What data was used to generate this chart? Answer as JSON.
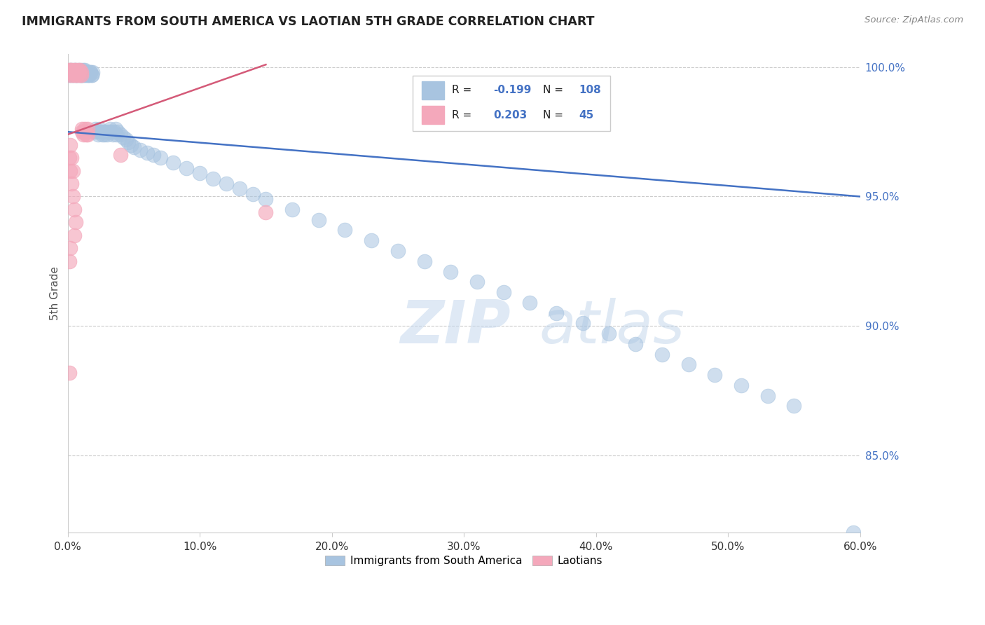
{
  "title": "IMMIGRANTS FROM SOUTH AMERICA VS LAOTIAN 5TH GRADE CORRELATION CHART",
  "source": "Source: ZipAtlas.com",
  "ylabel": "5th Grade",
  "blue_R": "-0.199",
  "blue_N": "108",
  "pink_R": "0.203",
  "pink_N": "45",
  "legend_label_blue": "Immigrants from South America",
  "legend_label_pink": "Laotians",
  "blue_color": "#a8c4e0",
  "pink_color": "#f4a8bb",
  "blue_line_color": "#4472c4",
  "pink_line_color": "#d45a78",
  "watermark_zip": "ZIP",
  "watermark_atlas": "atlas",
  "xmin": 0.0,
  "xmax": 0.6,
  "ymin": 0.82,
  "ymax": 1.005,
  "ytick_vals": [
    0.85,
    0.9,
    0.95,
    1.0
  ],
  "ytick_labels": [
    "85.0%",
    "90.0%",
    "95.0%",
    "100.0%"
  ],
  "xtick_vals": [
    0.0,
    0.1,
    0.2,
    0.3,
    0.4,
    0.5,
    0.6
  ],
  "xtick_labels": [
    "0.0%",
    "10.0%",
    "20.0%",
    "30.0%",
    "40.0%",
    "50.0%",
    "60.0%"
  ],
  "blue_x": [
    0.001,
    0.002,
    0.002,
    0.003,
    0.003,
    0.004,
    0.004,
    0.005,
    0.005,
    0.006,
    0.006,
    0.007,
    0.007,
    0.008,
    0.008,
    0.009,
    0.009,
    0.01,
    0.01,
    0.011,
    0.011,
    0.012,
    0.012,
    0.013,
    0.013,
    0.014,
    0.015,
    0.015,
    0.016,
    0.017,
    0.018,
    0.019,
    0.02,
    0.021,
    0.022,
    0.023,
    0.024,
    0.025,
    0.026,
    0.027,
    0.028,
    0.029,
    0.03,
    0.031,
    0.032,
    0.033,
    0.034,
    0.035,
    0.036,
    0.037,
    0.038,
    0.04,
    0.042,
    0.044,
    0.046,
    0.048,
    0.05,
    0.055,
    0.06,
    0.065,
    0.07,
    0.08,
    0.09,
    0.1,
    0.11,
    0.12,
    0.13,
    0.14,
    0.15,
    0.17,
    0.19,
    0.21,
    0.23,
    0.25,
    0.27,
    0.29,
    0.31,
    0.33,
    0.35,
    0.37,
    0.39,
    0.41,
    0.43,
    0.45,
    0.47,
    0.49,
    0.51,
    0.53,
    0.55,
    0.001,
    0.002,
    0.003,
    0.004,
    0.005,
    0.006,
    0.007,
    0.008,
    0.009,
    0.01,
    0.011,
    0.012,
    0.013,
    0.014,
    0.015,
    0.016,
    0.017,
    0.018,
    0.595
  ],
  "blue_y": [
    0.998,
    0.999,
    0.997,
    0.998,
    0.999,
    0.997,
    0.998,
    0.999,
    0.998,
    0.997,
    0.999,
    0.998,
    0.997,
    0.999,
    0.998,
    0.997,
    0.998,
    0.999,
    0.997,
    0.998,
    0.997,
    0.999,
    0.998,
    0.997,
    0.999,
    0.998,
    0.997,
    0.998,
    0.997,
    0.998,
    0.997,
    0.998,
    0.975,
    0.976,
    0.975,
    0.974,
    0.976,
    0.975,
    0.974,
    0.975,
    0.974,
    0.975,
    0.974,
    0.975,
    0.976,
    0.975,
    0.974,
    0.975,
    0.976,
    0.974,
    0.975,
    0.974,
    0.973,
    0.972,
    0.971,
    0.97,
    0.969,
    0.968,
    0.967,
    0.966,
    0.965,
    0.963,
    0.961,
    0.959,
    0.957,
    0.955,
    0.953,
    0.951,
    0.949,
    0.945,
    0.941,
    0.937,
    0.933,
    0.929,
    0.925,
    0.921,
    0.917,
    0.913,
    0.909,
    0.905,
    0.901,
    0.897,
    0.893,
    0.889,
    0.885,
    0.881,
    0.877,
    0.873,
    0.869,
    0.998,
    0.997,
    0.998,
    0.997,
    0.998,
    0.997,
    0.998,
    0.997,
    0.998,
    0.997,
    0.998,
    0.997,
    0.998,
    0.997,
    0.998,
    0.997,
    0.998,
    0.997,
    0.82
  ],
  "pink_x": [
    0.001,
    0.001,
    0.002,
    0.002,
    0.003,
    0.003,
    0.004,
    0.004,
    0.005,
    0.005,
    0.006,
    0.006,
    0.007,
    0.007,
    0.008,
    0.008,
    0.009,
    0.009,
    0.01,
    0.01,
    0.011,
    0.011,
    0.012,
    0.012,
    0.013,
    0.013,
    0.014,
    0.014,
    0.015,
    0.015,
    0.001,
    0.002,
    0.003,
    0.004,
    0.005,
    0.006,
    0.002,
    0.003,
    0.004,
    0.005,
    0.001,
    0.002,
    0.001,
    0.04,
    0.15
  ],
  "pink_y": [
    0.999,
    0.998,
    0.999,
    0.997,
    0.998,
    0.999,
    0.997,
    0.998,
    0.999,
    0.998,
    0.997,
    0.999,
    0.998,
    0.997,
    0.999,
    0.998,
    0.997,
    0.999,
    0.998,
    0.997,
    0.975,
    0.976,
    0.975,
    0.974,
    0.976,
    0.975,
    0.974,
    0.975,
    0.976,
    0.974,
    0.965,
    0.96,
    0.955,
    0.95,
    0.945,
    0.94,
    0.97,
    0.965,
    0.96,
    0.935,
    0.882,
    0.93,
    0.925,
    0.966,
    0.944
  ],
  "blue_trend_x": [
    0.0,
    0.6
  ],
  "blue_trend_y": [
    0.975,
    0.95
  ],
  "pink_trend_x": [
    0.0,
    0.15
  ],
  "pink_trend_y": [
    0.974,
    1.001
  ]
}
